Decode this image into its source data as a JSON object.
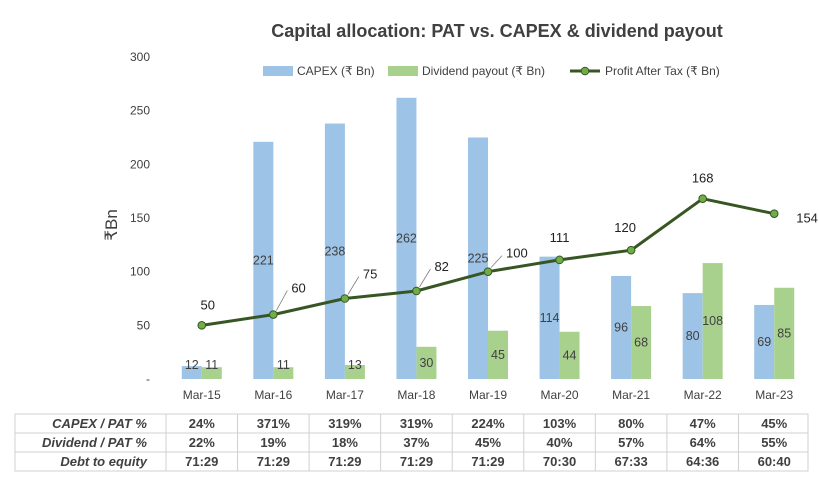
{
  "chart_data": {
    "type": "bar",
    "title": "Capital allocation: PAT vs. CAPEX & dividend payout",
    "ylabel": "₹Bn",
    "ylim": [
      0,
      300
    ],
    "yticks": [
      0,
      50,
      100,
      150,
      200,
      250,
      300
    ],
    "ytick_labels": [
      "-",
      "50",
      "100",
      "150",
      "200",
      "250",
      "300"
    ],
    "legend_position": "top-right",
    "grid": false,
    "categories": [
      "Mar-15",
      "Mar-16",
      "Mar-17",
      "Mar-18",
      "Mar-19",
      "Mar-20",
      "Mar-21",
      "Mar-22",
      "Mar-23"
    ],
    "series": [
      {
        "name": "CAPEX (₹ Bn)",
        "kind": "bar",
        "color": "#9DC3E6",
        "values": [
          12,
          221,
          238,
          262,
          225,
          114,
          96,
          80,
          69
        ]
      },
      {
        "name": "Dividend payout (₹ Bn)",
        "kind": "bar",
        "color": "#A9D18E",
        "values": [
          11,
          11,
          13,
          30,
          45,
          44,
          68,
          108,
          85
        ]
      },
      {
        "name": "Profit After Tax (₹ Bn)",
        "kind": "line",
        "color": "#375623",
        "marker_color": "#70AD47",
        "values": [
          50,
          60,
          75,
          82,
          100,
          111,
          120,
          168,
          154
        ]
      }
    ],
    "table": [
      {
        "label": "CAPEX / PAT %",
        "values": [
          "24%",
          "371%",
          "319%",
          "319%",
          "224%",
          "103%",
          "80%",
          "47%",
          "45%"
        ]
      },
      {
        "label": "Dividend / PAT %",
        "values": [
          "22%",
          "19%",
          "18%",
          "37%",
          "45%",
          "40%",
          "57%",
          "64%",
          "55%"
        ]
      },
      {
        "label": "Debt to equity",
        "values": [
          "71:29",
          "71:29",
          "71:29",
          "71:29",
          "71:29",
          "70:30",
          "67:33",
          "64:36",
          "60:40"
        ]
      }
    ]
  }
}
